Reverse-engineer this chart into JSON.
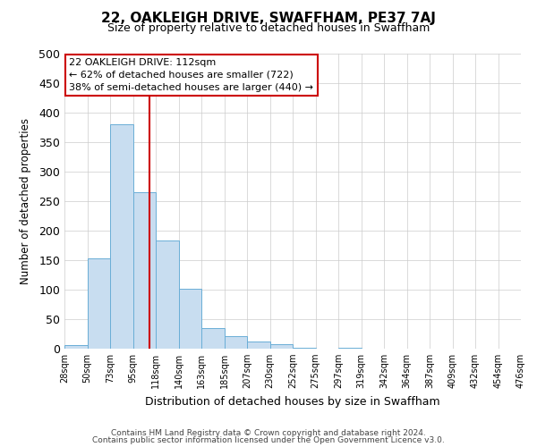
{
  "title": "22, OAKLEIGH DRIVE, SWAFFHAM, PE37 7AJ",
  "subtitle": "Size of property relative to detached houses in Swaffham",
  "xlabel": "Distribution of detached houses by size in Swaffham",
  "ylabel": "Number of detached properties",
  "footer_line1": "Contains HM Land Registry data © Crown copyright and database right 2024.",
  "footer_line2": "Contains public sector information licensed under the Open Government Licence v3.0.",
  "bin_labels": [
    "28sqm",
    "50sqm",
    "73sqm",
    "95sqm",
    "118sqm",
    "140sqm",
    "163sqm",
    "185sqm",
    "207sqm",
    "230sqm",
    "252sqm",
    "275sqm",
    "297sqm",
    "319sqm",
    "342sqm",
    "364sqm",
    "387sqm",
    "409sqm",
    "432sqm",
    "454sqm",
    "476sqm"
  ],
  "bar_values": [
    6,
    153,
    381,
    265,
    184,
    101,
    35,
    21,
    12,
    8,
    2,
    0,
    2,
    0,
    0,
    0,
    0,
    0,
    0,
    0
  ],
  "bar_color": "#c8ddf0",
  "bar_edge_color": "#6aaed6",
  "vline_color": "#cc0000",
  "annotation_title": "22 OAKLEIGH DRIVE: 112sqm",
  "annotation_line1": "← 62% of detached houses are smaller (722)",
  "annotation_line2": "38% of semi-detached houses are larger (440) →",
  "annotation_box_color": "#cc0000",
  "ylim": [
    0,
    500
  ],
  "yticks": [
    0,
    50,
    100,
    150,
    200,
    250,
    300,
    350,
    400,
    450,
    500
  ],
  "background_color": "#ffffff",
  "grid_color": "#cccccc"
}
